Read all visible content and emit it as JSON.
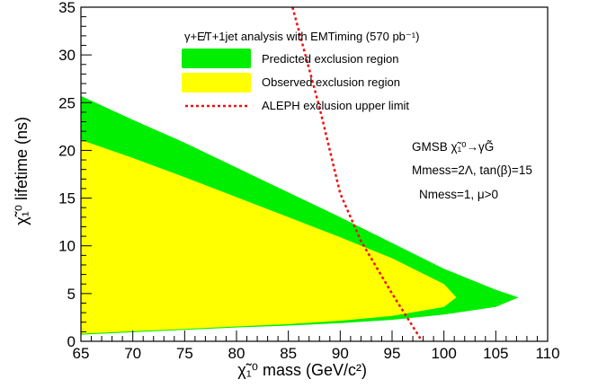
{
  "chart_data": {
    "type": "area",
    "title": "γ+E̸T+1jet analysis with EMTiming (570 pb⁻¹)",
    "xlabel": "χ̃₁⁰ mass (GeV/c²)",
    "ylabel": "χ̃₁⁰ lifetime (ns)",
    "xlim": [
      65,
      110
    ],
    "ylim": [
      0,
      35
    ],
    "xticks": [
      "65",
      "70",
      "75",
      "80",
      "85",
      "90",
      "95",
      "100",
      "105",
      "110"
    ],
    "yticks": [
      "0",
      "5",
      "10",
      "15",
      "20",
      "25",
      "30",
      "35"
    ],
    "grid": false,
    "legend_position": "top-left",
    "series": [
      {
        "name": "Predicted exclusion region",
        "type": "area",
        "color": "#00ee00",
        "upper": [
          [
            65,
            25.7
          ],
          [
            70,
            23.2
          ],
          [
            75,
            20.8
          ],
          [
            80,
            18.2
          ],
          [
            85,
            15.6
          ],
          [
            90,
            13.0
          ],
          [
            95,
            10.3
          ],
          [
            100,
            7.6
          ],
          [
            105,
            5.4
          ],
          [
            107.2,
            4.6
          ]
        ],
        "lower": [
          [
            65,
            0.7
          ],
          [
            70,
            0.95
          ],
          [
            75,
            1.2
          ],
          [
            80,
            1.45
          ],
          [
            85,
            1.65
          ],
          [
            90,
            1.9
          ],
          [
            95,
            2.25
          ],
          [
            100,
            2.8
          ],
          [
            105,
            3.6
          ],
          [
            107.2,
            4.6
          ]
        ]
      },
      {
        "name": "Observed exclusion region",
        "type": "area",
        "color": "#ffff00",
        "upper": [
          [
            65,
            21.1
          ],
          [
            70,
            19.2
          ],
          [
            75,
            17.2
          ],
          [
            80,
            15.1
          ],
          [
            85,
            13.0
          ],
          [
            90,
            10.9
          ],
          [
            95,
            8.7
          ],
          [
            100,
            6.0
          ],
          [
            101.2,
            4.6
          ]
        ],
        "lower": [
          [
            65,
            0.8
          ],
          [
            70,
            1.05
          ],
          [
            75,
            1.3
          ],
          [
            80,
            1.55
          ],
          [
            85,
            1.8
          ],
          [
            90,
            2.15
          ],
          [
            95,
            2.65
          ],
          [
            100,
            3.6
          ],
          [
            101.2,
            4.6
          ]
        ]
      },
      {
        "name": "ALEPH exclusion upper limit",
        "type": "line",
        "style": "dotted",
        "color": "#ee1111",
        "points": [
          [
            85.4,
            35
          ],
          [
            88,
            24.5
          ],
          [
            90,
            15.5
          ],
          [
            92,
            10.5
          ],
          [
            95,
            5.0
          ],
          [
            97.9,
            0
          ]
        ]
      }
    ],
    "annotations": [
      "GMSB χ̃₁⁰→γG̃",
      "Mmess=2Λ, tan(β)=15",
      "Nmess=1, μ>0"
    ]
  }
}
